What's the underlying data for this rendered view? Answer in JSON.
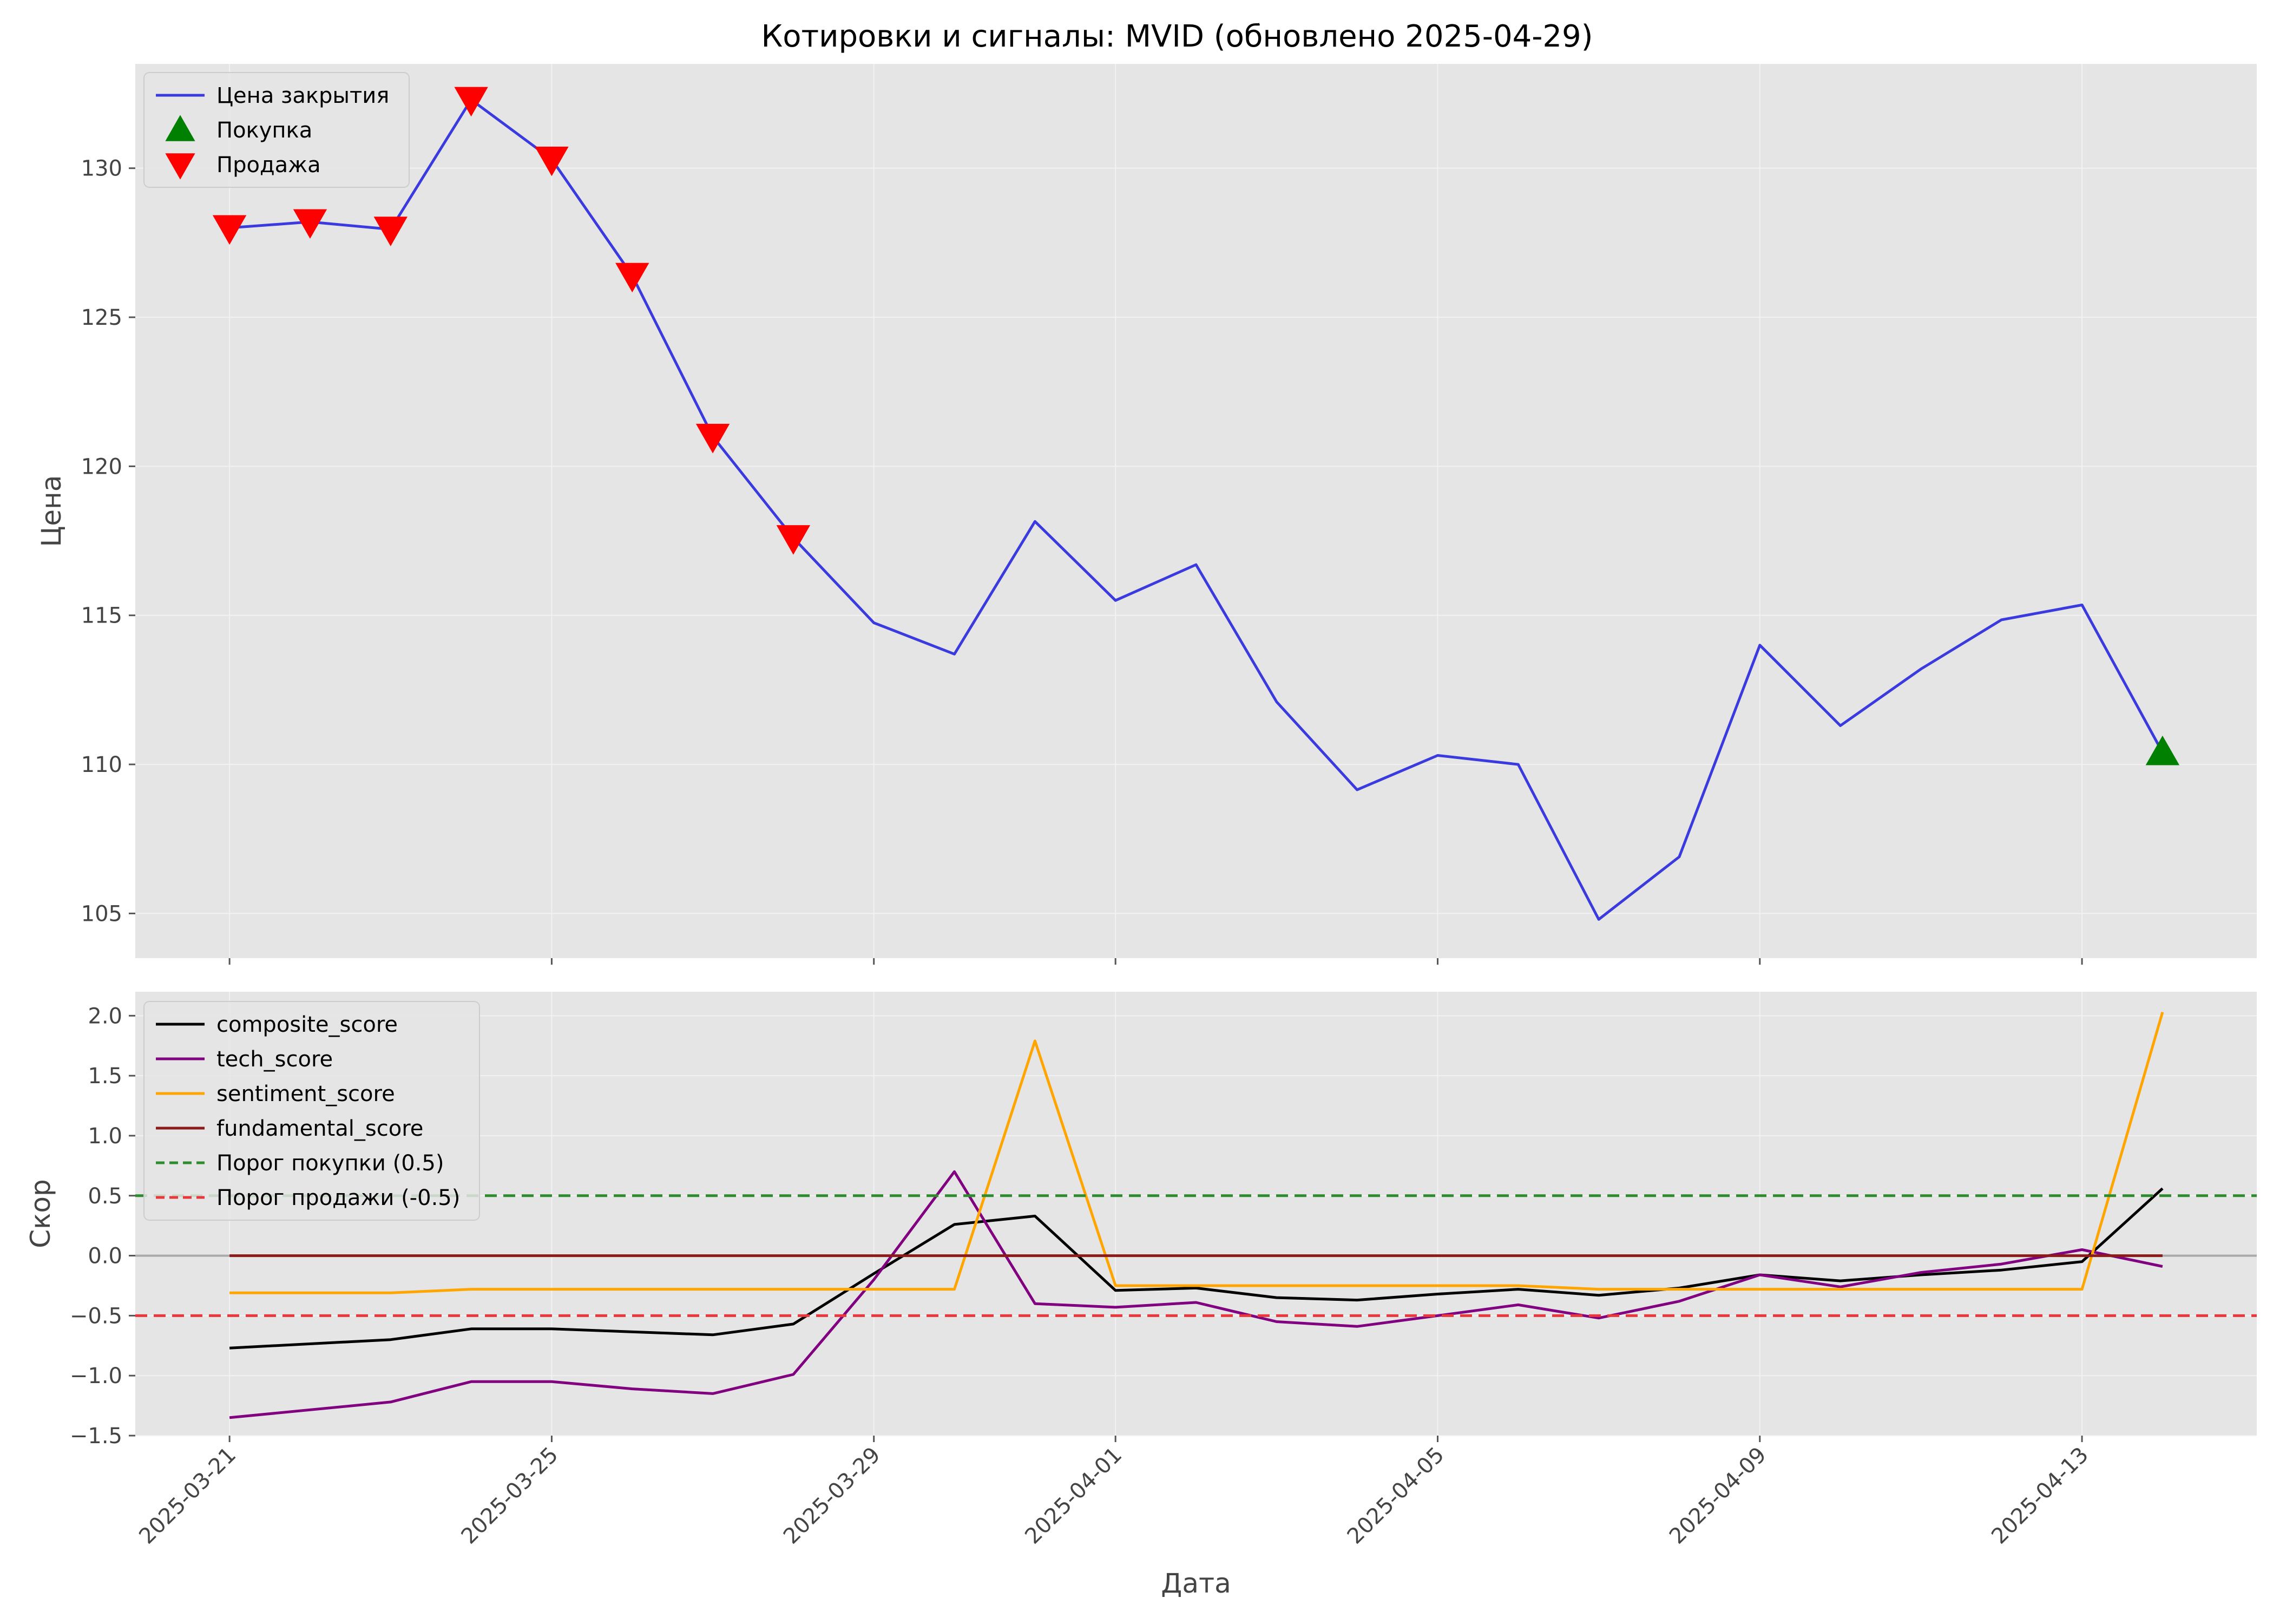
{
  "chart_data": [
    {
      "type": "line",
      "title": "Котировки и сигналы: MVID (обновлено 2025-04-29)",
      "ylabel": "Цена",
      "ylim": [
        103.5,
        133.5
      ],
      "yticks": [
        105,
        110,
        115,
        120,
        125,
        130
      ],
      "grid": true,
      "legend_position": "top-left",
      "series": [
        {
          "name": "Цена закрытия",
          "kind": "line",
          "color": "#3a3adf",
          "points": [
            [
              "2025-03-21",
              128.0
            ],
            [
              "2025-03-22",
              128.2
            ],
            [
              "2025-03-23",
              127.95
            ],
            [
              "2025-03-24",
              132.3
            ],
            [
              "2025-03-25",
              130.3
            ],
            [
              "2025-03-26",
              126.4
            ],
            [
              "2025-03-27",
              121.0
            ],
            [
              "2025-03-28",
              117.6
            ],
            [
              "2025-03-29",
              114.75
            ],
            [
              "2025-03-30",
              113.7
            ],
            [
              "2025-03-31",
              118.15
            ],
            [
              "2025-04-01",
              115.5
            ],
            [
              "2025-04-02",
              116.7
            ],
            [
              "2025-04-03",
              112.1
            ],
            [
              "2025-04-04",
              109.15
            ],
            [
              "2025-04-05",
              110.3
            ],
            [
              "2025-04-06",
              110.0
            ],
            [
              "2025-04-07",
              104.8
            ],
            [
              "2025-04-08",
              106.9
            ],
            [
              "2025-04-09",
              114.0
            ],
            [
              "2025-04-10",
              111.3
            ],
            [
              "2025-04-11",
              113.2
            ],
            [
              "2025-04-12",
              114.85
            ],
            [
              "2025-04-13",
              115.35
            ],
            [
              "2025-04-14",
              110.4
            ]
          ]
        },
        {
          "name": "Покупка",
          "kind": "marker-up",
          "color": "#008000",
          "points": [
            [
              "2025-04-14",
              110.4
            ]
          ]
        },
        {
          "name": "Продажа",
          "kind": "marker-down",
          "color": "#ff0000",
          "points": [
            [
              "2025-03-21",
              128.0
            ],
            [
              "2025-03-22",
              128.2
            ],
            [
              "2025-03-23",
              127.95
            ],
            [
              "2025-03-24",
              132.3
            ],
            [
              "2025-03-25",
              130.3
            ],
            [
              "2025-03-26",
              126.4
            ],
            [
              "2025-03-27",
              121.0
            ],
            [
              "2025-03-28",
              117.6
            ]
          ]
        }
      ]
    },
    {
      "type": "line",
      "xlabel": "Дата",
      "ylabel": "Скор",
      "ylim": [
        -1.5,
        2.2
      ],
      "yticks": [
        -1.5,
        -1.0,
        -0.5,
        0.0,
        0.5,
        1.0,
        1.5,
        2.0
      ],
      "ytick_labels": [
        "−1.5",
        "−1.0",
        "−0.5",
        "0.0",
        "0.5",
        "1.0",
        "1.5",
        "2.0"
      ],
      "xticks": [
        "2025-03-21",
        "2025-03-25",
        "2025-03-29",
        "2025-04-01",
        "2025-04-05",
        "2025-04-09",
        "2025-04-13"
      ],
      "grid": true,
      "legend_position": "top-left",
      "series": [
        {
          "name": "composite_score",
          "kind": "line",
          "color": "#000000",
          "points": [
            [
              "2025-03-21",
              -0.77
            ],
            [
              "2025-03-23",
              -0.7
            ],
            [
              "2025-03-24",
              -0.61
            ],
            [
              "2025-03-25",
              -0.61
            ],
            [
              "2025-03-27",
              -0.66
            ],
            [
              "2025-03-28",
              -0.57
            ],
            [
              "2025-03-29",
              -0.15
            ],
            [
              "2025-03-30",
              0.26
            ],
            [
              "2025-03-31",
              0.33
            ],
            [
              "2025-04-01",
              -0.29
            ],
            [
              "2025-04-02",
              -0.27
            ],
            [
              "2025-04-03",
              -0.35
            ],
            [
              "2025-04-04",
              -0.37
            ],
            [
              "2025-04-05",
              -0.32
            ],
            [
              "2025-04-06",
              -0.28
            ],
            [
              "2025-04-07",
              -0.33
            ],
            [
              "2025-04-08",
              -0.27
            ],
            [
              "2025-04-09",
              -0.16
            ],
            [
              "2025-04-10",
              -0.21
            ],
            [
              "2025-04-11",
              -0.16
            ],
            [
              "2025-04-12",
              -0.12
            ],
            [
              "2025-04-13",
              -0.05
            ],
            [
              "2025-04-14",
              0.56
            ]
          ]
        },
        {
          "name": "tech_score",
          "kind": "line",
          "color": "#800080",
          "points": [
            [
              "2025-03-21",
              -1.35
            ],
            [
              "2025-03-23",
              -1.22
            ],
            [
              "2025-03-24",
              -1.05
            ],
            [
              "2025-03-25",
              -1.05
            ],
            [
              "2025-03-26",
              -1.11
            ],
            [
              "2025-03-27",
              -1.15
            ],
            [
              "2025-03-28",
              -0.99
            ],
            [
              "2025-03-29",
              -0.2
            ],
            [
              "2025-03-30",
              0.7
            ],
            [
              "2025-03-31",
              -0.4
            ],
            [
              "2025-04-01",
              -0.43
            ],
            [
              "2025-04-02",
              -0.39
            ],
            [
              "2025-04-03",
              -0.55
            ],
            [
              "2025-04-04",
              -0.59
            ],
            [
              "2025-04-05",
              -0.5
            ],
            [
              "2025-04-06",
              -0.41
            ],
            [
              "2025-04-07",
              -0.52
            ],
            [
              "2025-04-08",
              -0.38
            ],
            [
              "2025-04-09",
              -0.16
            ],
            [
              "2025-04-10",
              -0.26
            ],
            [
              "2025-04-11",
              -0.14
            ],
            [
              "2025-04-12",
              -0.07
            ],
            [
              "2025-04-13",
              0.05
            ],
            [
              "2025-04-14",
              -0.09
            ]
          ]
        },
        {
          "name": "sentiment_score",
          "kind": "line",
          "color": "#ffa500",
          "points": [
            [
              "2025-03-21",
              -0.31
            ],
            [
              "2025-03-23",
              -0.31
            ],
            [
              "2025-03-24",
              -0.28
            ],
            [
              "2025-03-29",
              -0.28
            ],
            [
              "2025-03-30",
              -0.28
            ],
            [
              "2025-03-31",
              1.79
            ],
            [
              "2025-04-01",
              -0.25
            ],
            [
              "2025-04-06",
              -0.25
            ],
            [
              "2025-04-07",
              -0.28
            ],
            [
              "2025-04-13",
              -0.28
            ],
            [
              "2025-04-14",
              2.03
            ]
          ]
        },
        {
          "name": "fundamental_score",
          "kind": "line",
          "color": "#8b1a1a",
          "points": [
            [
              "2025-03-21",
              0.0
            ],
            [
              "2025-04-14",
              0.0
            ]
          ]
        },
        {
          "name": "Порог покупки (0.5)",
          "kind": "hline",
          "color": "#2e8b2e",
          "dash": true,
          "value": 0.5
        },
        {
          "name": "Порог продажи (-0.5)",
          "kind": "hline",
          "color": "#e8383b",
          "dash": true,
          "value": -0.5
        }
      ]
    }
  ]
}
